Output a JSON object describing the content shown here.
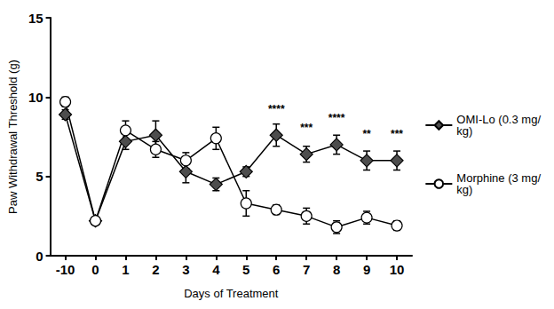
{
  "chart_data": {
    "type": "line",
    "x_label": "Days of Treatment",
    "y_label": "Paw Withdrawal Threshold (g)",
    "categories": [
      "-10",
      "0",
      "1",
      "2",
      "3",
      "4",
      "5",
      "6",
      "7",
      "8",
      "9",
      "10"
    ],
    "series": [
      {
        "name": "OMI-Lo (0.3 mg/kg)",
        "color": "#4d4d4d",
        "marker": "diamond",
        "values": [
          8.9,
          2.2,
          7.2,
          7.6,
          5.3,
          4.5,
          5.3,
          7.6,
          6.4,
          7.0,
          6.0,
          6.0
        ],
        "errors": [
          0.3,
          0.2,
          0.5,
          0.9,
          0.7,
          0.4,
          0.3,
          0.7,
          0.5,
          0.6,
          0.6,
          0.6
        ]
      },
      {
        "name": "Morphine (3 mg/kg)",
        "color": "#ffffff",
        "marker": "circle",
        "values": [
          9.7,
          2.2,
          7.9,
          6.7,
          6.0,
          7.4,
          3.3,
          2.9,
          2.5,
          1.8,
          2.4,
          1.9
        ],
        "errors": [
          0.3,
          0.2,
          0.6,
          0.5,
          0.5,
          0.7,
          0.8,
          0.3,
          0.5,
          0.4,
          0.4,
          0.3
        ]
      }
    ],
    "annotations": [
      {
        "x": "6",
        "text": "****"
      },
      {
        "x": "7",
        "text": "***"
      },
      {
        "x": "8",
        "text": "****"
      },
      {
        "x": "9",
        "text": "**"
      },
      {
        "x": "10",
        "text": "***"
      }
    ],
    "ylim": [
      0,
      15
    ],
    "yticks": [
      0,
      5,
      10,
      15
    ],
    "grid": false,
    "legend": "right"
  }
}
